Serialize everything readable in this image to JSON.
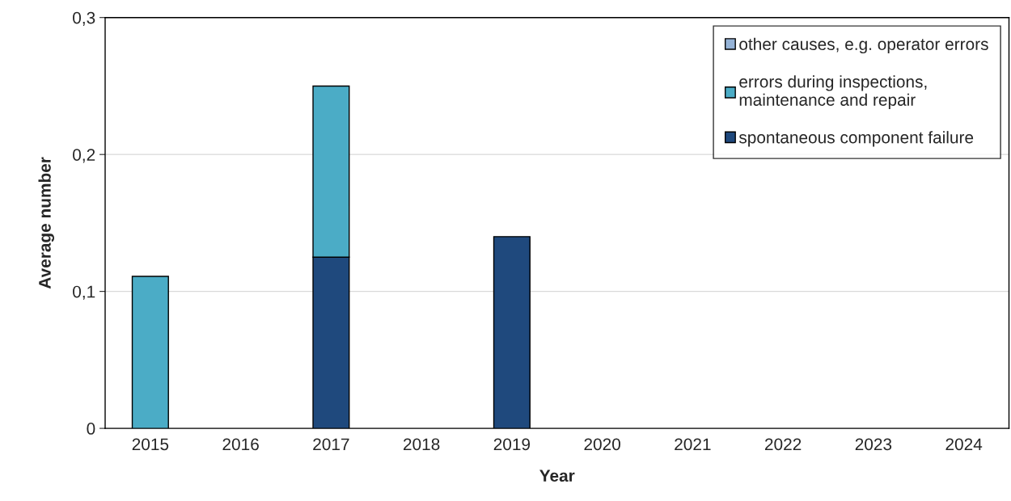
{
  "chart_data": {
    "type": "bar",
    "stacked": true,
    "xlabel": "Year",
    "ylabel": "Average number",
    "categories": [
      "2015",
      "2016",
      "2017",
      "2018",
      "2019",
      "2020",
      "2021",
      "2022",
      "2023",
      "2024"
    ],
    "series": [
      {
        "name": "spontaneous component failure",
        "color": "#1f497d",
        "values": [
          0,
          0,
          0.125,
          0,
          0.14,
          0,
          0,
          0,
          0,
          0
        ]
      },
      {
        "name": "errors during inspections,\nmaintenance and repair",
        "color": "#4bacc6",
        "values": [
          0.111,
          0,
          0.125,
          0,
          0,
          0,
          0,
          0,
          0,
          0
        ]
      },
      {
        "name": "other causes, e.g. operator errors",
        "color": "#95b3d7",
        "values": [
          0,
          0,
          0,
          0,
          0,
          0,
          0,
          0,
          0,
          0
        ]
      }
    ],
    "ylim": [
      0,
      0.3
    ],
    "yticks": [
      0,
      {
        "value": 0.1,
        "label": "0,1"
      },
      {
        "value": 0.2,
        "label": "0,2"
      },
      {
        "value": 0.3,
        "label": "0,3"
      }
    ],
    "grid": "y",
    "legend": "top right"
  }
}
